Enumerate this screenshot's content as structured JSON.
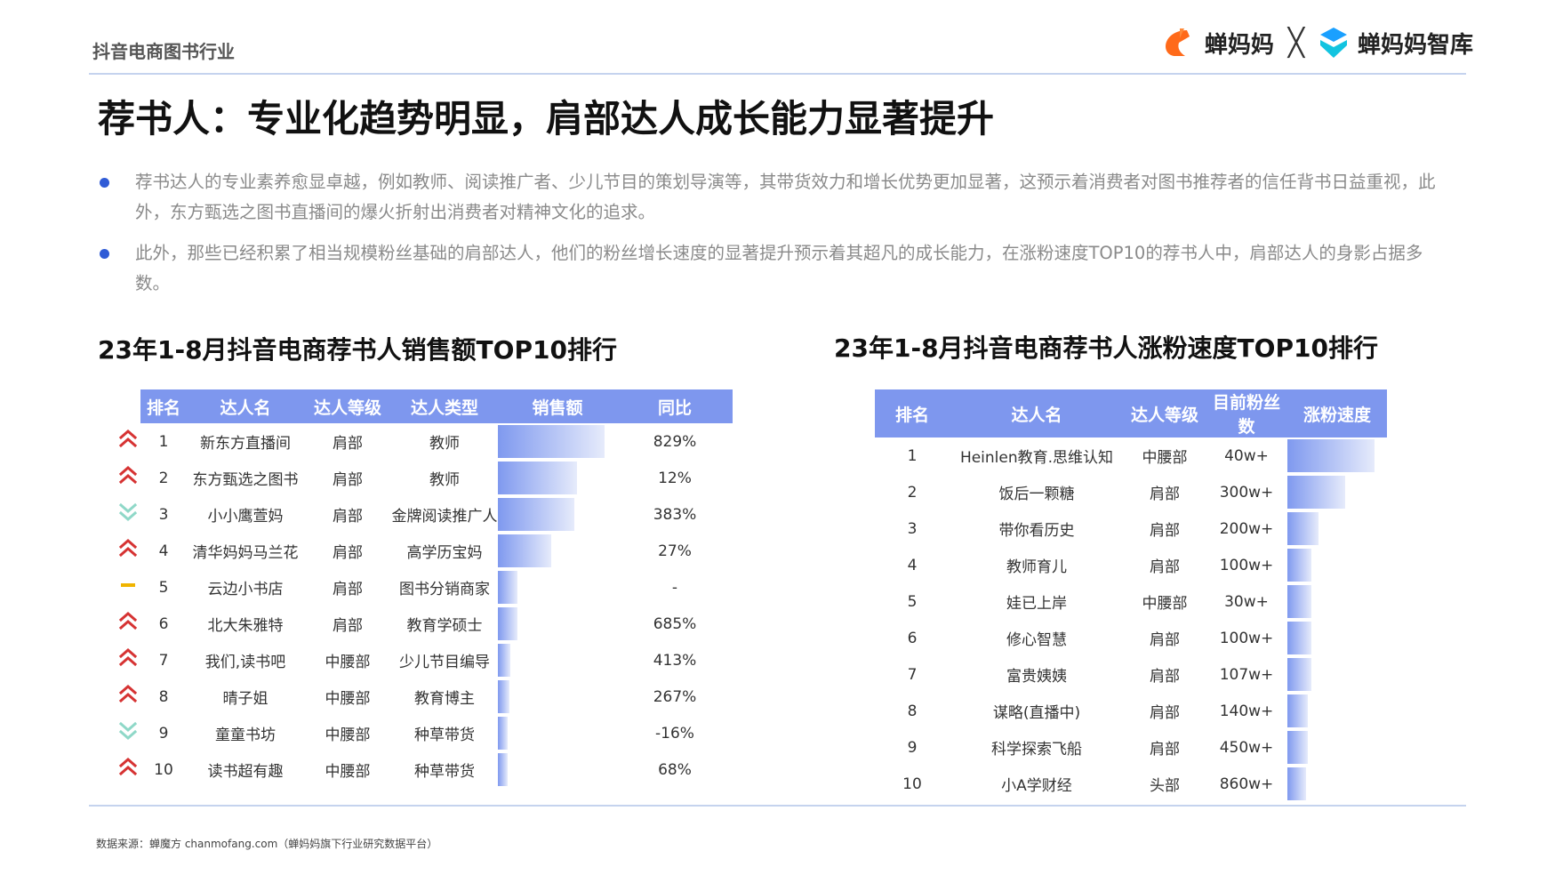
{
  "header": {
    "category": "抖音电商图书行业",
    "logo_left": "蝉妈妈",
    "logo_x": "╳",
    "logo_right": "蝉妈妈智库"
  },
  "title": "荐书人：专业化趋势明显，肩部达人成长能力显著提升",
  "bullets": [
    "荐书达人的专业素养愈显卓越，例如教师、阅读推广者、少儿节目的策划导演等，其带货效力和增长优势更加显著，这预示着消费者对图书推荐者的信任背书日益重视，此外，东方甄选之图书直播间的爆火折射出消费者对精神文化的追求。",
    "此外，那些已经积累了相当规模粉丝基础的肩部达人，他们的粉丝增长速度的显著提升预示着其超凡的成长能力，在涨粉速度TOP10的荐书人中，肩部达人的身影占据多数。"
  ],
  "colors": {
    "accent": "#7e97ee",
    "trend_up": "#d63333",
    "trend_down": "#8fd8c8",
    "trend_flat": "#f0b400",
    "bullet": "#2f5bd6"
  },
  "sales_table": {
    "title": "23年1-8月抖音电商荐书人销售额TOP10排行",
    "headers": [
      "排名",
      "达人名",
      "达人等级",
      "达人类型",
      "销售额",
      "同比"
    ],
    "rows": [
      {
        "trend": "up",
        "rank": "1",
        "name": "新东方直播间",
        "level": "肩部",
        "type": "教师",
        "sales_share": 1.0,
        "yoy": "829%"
      },
      {
        "trend": "up",
        "rank": "2",
        "name": "东方甄选之图书",
        "level": "肩部",
        "type": "教师",
        "sales_share": 0.74,
        "yoy": "12%"
      },
      {
        "trend": "down",
        "rank": "3",
        "name": "小小鹰萱妈",
        "level": "肩部",
        "type": "金牌阅读推广人",
        "sales_share": 0.72,
        "yoy": "383%"
      },
      {
        "trend": "up",
        "rank": "4",
        "name": "清华妈妈马兰花",
        "level": "肩部",
        "type": "高学历宝妈",
        "sales_share": 0.5,
        "yoy": "27%"
      },
      {
        "trend": "flat",
        "rank": "5",
        "name": "云边小书店",
        "level": "肩部",
        "type": "图书分销商家",
        "sales_share": 0.18,
        "yoy": "-"
      },
      {
        "trend": "up",
        "rank": "6",
        "name": "北大朱雅特",
        "level": "肩部",
        "type": "教育学硕士",
        "sales_share": 0.18,
        "yoy": "685%"
      },
      {
        "trend": "up",
        "rank": "7",
        "name": "我们,读书吧",
        "level": "中腰部",
        "type": "少儿节目编导",
        "sales_share": 0.12,
        "yoy": "413%"
      },
      {
        "trend": "up",
        "rank": "8",
        "name": "晴子姐",
        "level": "中腰部",
        "type": "教育博主",
        "sales_share": 0.11,
        "yoy": "267%"
      },
      {
        "trend": "down",
        "rank": "9",
        "name": "童童书坊",
        "level": "中腰部",
        "type": "种草带货",
        "sales_share": 0.09,
        "yoy": "-16%"
      },
      {
        "trend": "up",
        "rank": "10",
        "name": "读书超有趣",
        "level": "中腰部",
        "type": "种草带货",
        "sales_share": 0.09,
        "yoy": "68%"
      }
    ]
  },
  "fans_table": {
    "title": "23年1-8月抖音电商荐书人涨粉速度TOP10排行",
    "headers": [
      "排名",
      "达人名",
      "达人等级",
      "目前粉丝数",
      "涨粉速度"
    ],
    "rows": [
      {
        "rank": "1",
        "name": "Heinlen教育.思维认知",
        "level": "中腰部",
        "fans": "40w+",
        "speed_share": 1.0
      },
      {
        "rank": "2",
        "name": "饭后一颗糖",
        "level": "肩部",
        "fans": "300w+",
        "speed_share": 0.66
      },
      {
        "rank": "3",
        "name": "带你看历史",
        "level": "肩部",
        "fans": "200w+",
        "speed_share": 0.36
      },
      {
        "rank": "4",
        "name": "教师育儿",
        "level": "肩部",
        "fans": "100w+",
        "speed_share": 0.28
      },
      {
        "rank": "5",
        "name": "娃已上岸",
        "level": "中腰部",
        "fans": "30w+",
        "speed_share": 0.28
      },
      {
        "rank": "6",
        "name": "修心智慧",
        "level": "肩部",
        "fans": "100w+",
        "speed_share": 0.28
      },
      {
        "rank": "7",
        "name": "富贵姨姨",
        "level": "肩部",
        "fans": "107w+",
        "speed_share": 0.28
      },
      {
        "rank": "8",
        "name": "谋略(直播中)",
        "level": "肩部",
        "fans": "140w+",
        "speed_share": 0.23
      },
      {
        "rank": "9",
        "name": "科学探索飞船",
        "level": "肩部",
        "fans": "450w+",
        "speed_share": 0.23
      },
      {
        "rank": "10",
        "name": "小A学财经",
        "level": "头部",
        "fans": "860w+",
        "speed_share": 0.21
      }
    ]
  },
  "source": "数据来源：蝉魔方 chanmofang.com（蝉妈妈旗下行业研究数据平台）"
}
